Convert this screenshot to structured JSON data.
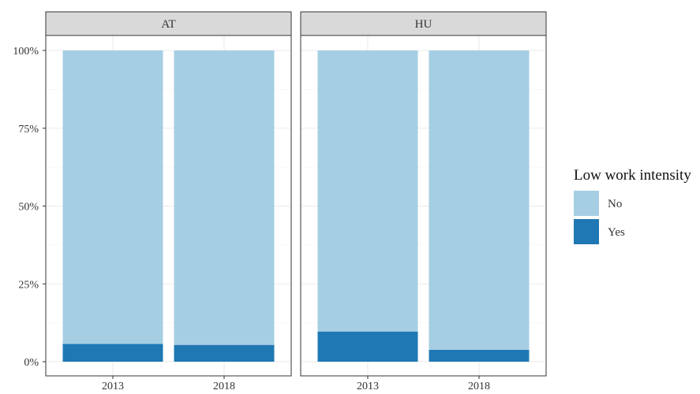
{
  "chart_data": {
    "type": "bar",
    "stacked": true,
    "percent_scale": true,
    "facets": [
      "AT",
      "HU"
    ],
    "categories": [
      "2013",
      "2018"
    ],
    "series": [
      {
        "name": "No",
        "color": "#a6cee3",
        "values": {
          "AT": [
            94.3,
            94.6
          ],
          "HU": [
            90.3,
            96.2
          ]
        }
      },
      {
        "name": "Yes",
        "color": "#1f78b4",
        "values": {
          "AT": [
            5.7,
            5.4
          ],
          "HU": [
            9.7,
            3.8
          ]
        }
      }
    ],
    "y_ticks": [
      "0%",
      "25%",
      "50%",
      "75%",
      "100%"
    ],
    "ylim": [
      0,
      100
    ],
    "grid": true,
    "legend": {
      "title": "Low work intensity",
      "position": "right"
    }
  }
}
